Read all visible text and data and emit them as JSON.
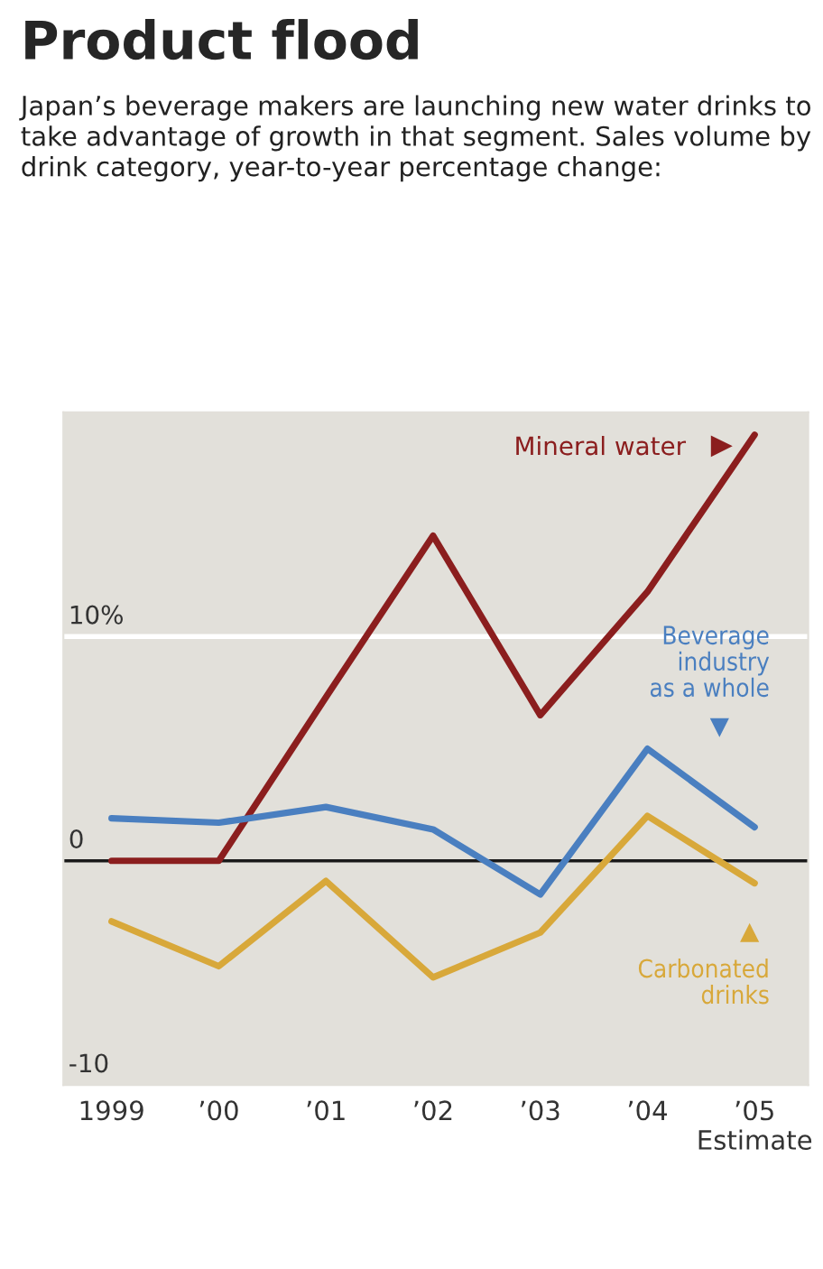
{
  "chart_data": {
    "type": "line",
    "title": "Product flood",
    "subtitle": "Japan’s beverage makers are launching new water drinks to take advantage of growth in that segment. Sales volume by drink category, year-to-year percentage change:",
    "categories": [
      "1999",
      "’00",
      "’01",
      "’02",
      "’03",
      "’04",
      "’05\nEstimate"
    ],
    "series": [
      {
        "name": "Mineral water",
        "color": "#8b1e1e",
        "values": [
          0,
          0,
          7.3,
          14.5,
          6.5,
          12,
          19
        ]
      },
      {
        "name": "Beverage\nindustry\nas a whole",
        "color": "#4a7fc0",
        "values": [
          1.9,
          1.7,
          2.4,
          1.4,
          -1.5,
          5.0,
          1.5
        ]
      },
      {
        "name": "Carbonated\ndrinks",
        "color": "#d8a83a",
        "values": [
          -2.7,
          -4.7,
          -0.9,
          -5.2,
          -3.2,
          2.0,
          -1.0
        ]
      }
    ],
    "ylim": [
      -10,
      20
    ],
    "yticks": [
      {
        "value": 10,
        "label": "10%"
      },
      0,
      -10
    ],
    "ref_lines": [
      {
        "axis": "y",
        "value": 10,
        "color": "#ffffff"
      },
      {
        "axis": "y",
        "value": 0,
        "color": "#1a1a1a"
      }
    ],
    "legend": "top right",
    "grid": false
  }
}
